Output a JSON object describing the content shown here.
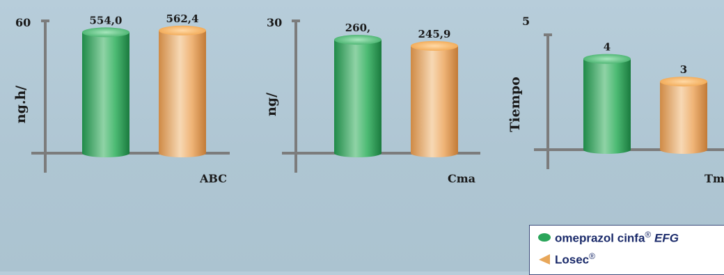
{
  "chart_data": [
    {
      "type": "bar",
      "categories": [
        "omeprazol cinfa EFG",
        "Losec"
      ],
      "values": [
        554.0,
        562.4
      ],
      "value_labels": [
        "554,0",
        "562,4"
      ],
      "ymax_label": "60",
      "ylim": [
        0,
        600
      ],
      "ylabel": "ng.h/",
      "xlabel": "ABC"
    },
    {
      "type": "bar",
      "categories": [
        "omeprazol cinfa EFG",
        "Losec"
      ],
      "values": [
        260.0,
        245.9
      ],
      "value_labels": [
        "260,",
        "245,9"
      ],
      "ymax_label": "30",
      "ylim": [
        0,
        300
      ],
      "ylabel": "ng/",
      "xlabel": "Cma"
    },
    {
      "type": "bar",
      "categories": [
        "omeprazol cinfa EFG",
        "Losec"
      ],
      "values": [
        4,
        3
      ],
      "value_labels": [
        "4",
        "3"
      ],
      "ymax_label": "5",
      "ylim": [
        0,
        5
      ],
      "ylabel": "Tiempo",
      "xlabel": "Tma"
    }
  ],
  "colors": {
    "series1": "#2aa55a",
    "series2": "#e8a75a",
    "axis": "#7c7c7c",
    "text": "#1a1a1a",
    "legend_text": "#1a2a6a"
  },
  "legend": {
    "items": [
      {
        "label": "omeprazol cinfa",
        "reg": "®",
        "suffix": "EFG",
        "marker": "green-dot"
      },
      {
        "label": "Losec",
        "reg": "®",
        "suffix": "",
        "marker": "orange-triangle"
      }
    ]
  }
}
